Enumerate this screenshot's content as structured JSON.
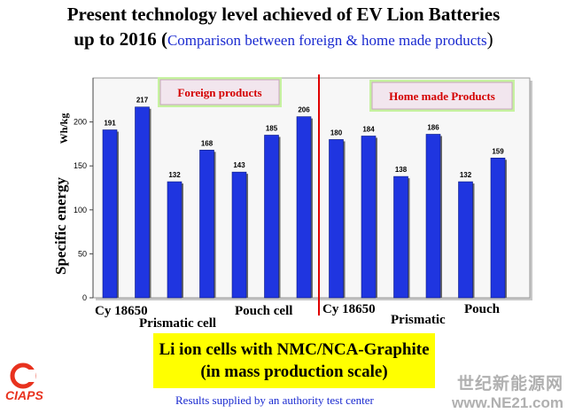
{
  "header": {
    "line1": "Present technology level achieved of EV Lion Batteries",
    "line2_bold": "up to 2016 (",
    "line2_subtitle": "Comparison between foreign & home made products",
    "line2_close": ")"
  },
  "chart_data": {
    "type": "bar",
    "ylabel": "Specific energy",
    "yunit": "Wh/kg",
    "ylim": [
      0,
      250
    ],
    "yticks": [
      0,
      50,
      100,
      150,
      200
    ],
    "grid": false,
    "values": [
      191,
      217,
      132,
      168,
      143,
      185,
      206,
      180,
      184,
      138,
      186,
      132,
      159
    ],
    "groups": [
      {
        "name": "Foreign products",
        "labels": [
          "Cy 18650",
          "Prismatic cell",
          "Pouch cell"
        ]
      },
      {
        "name": "Home made Products",
        "labels": [
          "Cy 18650",
          "Prismatic",
          "Pouch"
        ]
      }
    ],
    "bar_color": "#1f35e0",
    "divider_color": "#e00000"
  },
  "callout": {
    "line1": "Li ion cells with NMC/NCA-Graphite",
    "line2": "(in mass production scale)"
  },
  "footer": "Results supplied by an authority test center",
  "logo": {
    "text": "CIAPS",
    "color": "#e8321e"
  },
  "watermark": {
    "line1": "世纪新能源网",
    "line2": "www.NE21.com"
  }
}
